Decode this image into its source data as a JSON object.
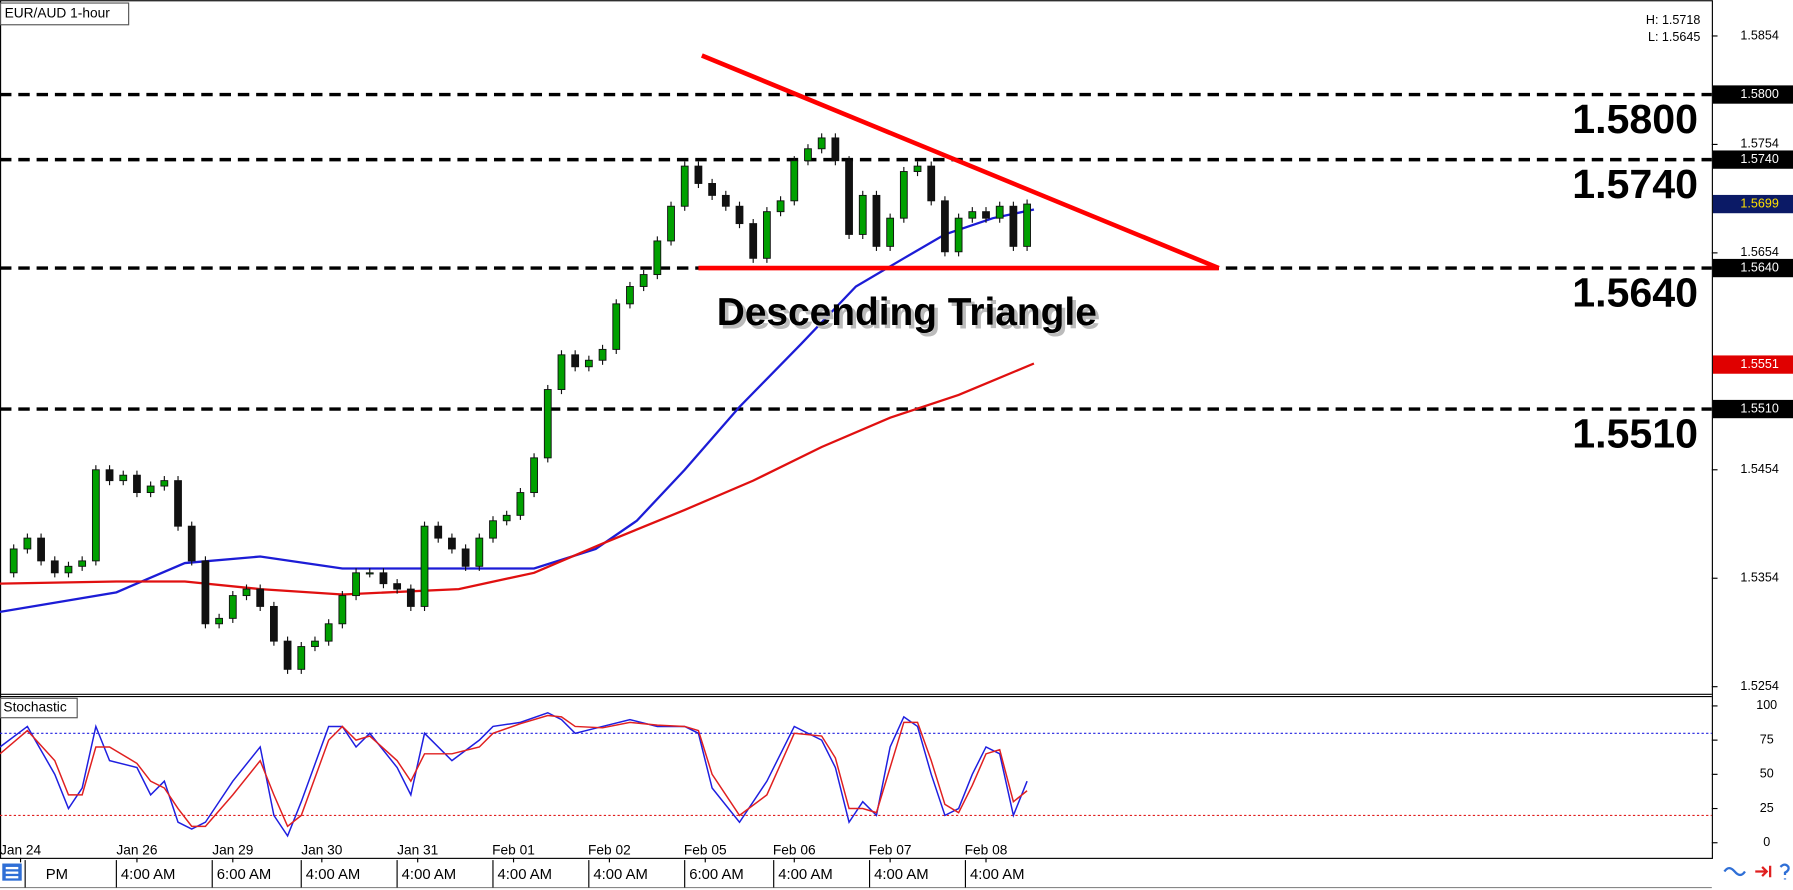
{
  "title": "EUR/AUD 1-hour",
  "high_low": [
    "H: 1.5718",
    "L: 1.5645"
  ],
  "chart_data": [
    {
      "type": "candlestick",
      "x": [
        0,
        2,
        4,
        6,
        8,
        10,
        12,
        14,
        16,
        18,
        20,
        22,
        24,
        26,
        28,
        30,
        32,
        34,
        36,
        38,
        40,
        42,
        44,
        46,
        48,
        50,
        52,
        54,
        56,
        58,
        60,
        62,
        64,
        66,
        68,
        70,
        72,
        74,
        76,
        78,
        80,
        82,
        84,
        86,
        88,
        90,
        92,
        94,
        96,
        98,
        100,
        102,
        104,
        106,
        108,
        110,
        112,
        114,
        116,
        118,
        120,
        122,
        124,
        126,
        128,
        130,
        132,
        134,
        136,
        138,
        140,
        142,
        144,
        146,
        148,
        150
      ],
      "close": [
        1.5359,
        1.5381,
        1.5391,
        1.537,
        1.5359,
        1.5365,
        1.537,
        1.5454,
        1.5444,
        1.5449,
        1.5433,
        1.5439,
        1.5444,
        1.5402,
        1.537,
        1.5312,
        1.5317,
        1.5338,
        1.5344,
        1.5328,
        1.5296,
        1.527,
        1.5291,
        1.5296,
        1.5312,
        1.5338,
        1.5359,
        1.5359,
        1.5349,
        1.5344,
        1.5328,
        1.5402,
        1.5391,
        1.5381,
        1.5365,
        1.5391,
        1.5407,
        1.5412,
        1.5433,
        1.5465,
        1.5528,
        1.556,
        1.5549,
        1.5555,
        1.5565,
        1.5607,
        1.5623,
        1.5634,
        1.5665,
        1.5697,
        1.5734,
        1.5718,
        1.5707,
        1.5697,
        1.5681,
        1.5649,
        1.5692,
        1.5702,
        1.5739,
        1.575,
        1.576,
        1.5739,
        1.5671,
        1.5707,
        1.566,
        1.5686,
        1.5729,
        1.5734,
        1.5702,
        1.5655,
        1.5686,
        1.5692,
        1.5686,
        1.5697,
        1.566,
        1.5699
      ],
      "up_color": "#00a000",
      "down_color": "#111111",
      "overlays": [
        {
          "color": "#1c1cd6",
          "x": [
            0,
            17,
            27,
            38,
            50,
            67,
            78,
            87,
            93,
            100,
            108,
            117,
            125,
            132,
            138,
            145,
            151
          ],
          "values": [
            1.5323,
            1.5341,
            1.5368,
            1.5374,
            1.5363,
            1.5363,
            1.5363,
            1.5381,
            1.5407,
            1.5454,
            1.5512,
            1.557,
            1.5623,
            1.5649,
            1.5671,
            1.5686,
            1.5694
          ]
        },
        {
          "color": "#e01010",
          "x": [
            0,
            17,
            27,
            38,
            50,
            67,
            78,
            88,
            100,
            110,
            120,
            130,
            140,
            151
          ],
          "values": [
            1.5349,
            1.5351,
            1.5351,
            1.5344,
            1.5339,
            1.5344,
            1.5359,
            1.5386,
            1.5417,
            1.5444,
            1.5475,
            1.5502,
            1.5523,
            1.5552
          ]
        }
      ],
      "xlim": [
        0,
        250
      ],
      "ylim": [
        1.5247,
        1.5887
      ],
      "yticks": [
        1.5254,
        1.5354,
        1.5454,
        1.5654,
        1.5754,
        1.5854
      ],
      "xticks": [
        {
          "value": 3,
          "label": "Jan 24"
        },
        {
          "value": 20,
          "label": "Jan 26"
        },
        {
          "value": 34,
          "label": "Jan 29"
        },
        {
          "value": 47,
          "label": "Jan 30"
        },
        {
          "value": 61,
          "label": "Jan 31"
        },
        {
          "value": 75,
          "label": "Feb 01"
        },
        {
          "value": 89,
          "label": "Feb 02"
        },
        {
          "value": 103,
          "label": "Feb 05"
        },
        {
          "value": 116,
          "label": "Feb 06"
        },
        {
          "value": 130,
          "label": "Feb 07"
        },
        {
          "value": 144,
          "label": "Feb 08"
        }
      ],
      "x_sublabels": [
        "PM",
        "4:00 AM",
        "6:00 AM",
        "4:00 AM",
        "4:00 AM",
        "4:00 AM",
        "4:00 AM",
        "6:00 AM",
        "4:00 AM",
        "4:00 AM",
        "4:00 AM"
      ],
      "levels": [
        {
          "value": 1.58,
          "label": "1.5800"
        },
        {
          "value": 1.574,
          "label": "1.5740"
        },
        {
          "value": 1.564,
          "label": "1.5640"
        },
        {
          "value": 1.551,
          "label": "1.5510"
        }
      ],
      "price_markers": [
        {
          "value": 1.5699,
          "label": "1.5699",
          "color": "#0b1a66",
          "text_color": "#ffe000"
        },
        {
          "value": 1.5551,
          "label": "1.5551",
          "color": "#e00000",
          "text_color": "#ffffff"
        }
      ],
      "trendlines": [
        {
          "x": [
            102.5,
            178
          ],
          "y": [
            1.5836,
            1.564
          ]
        },
        {
          "x": [
            102,
            178
          ],
          "y": [
            1.564,
            1.564
          ]
        }
      ],
      "trend_color": "#ff0000",
      "annotation": "Descending Triangle"
    },
    {
      "type": "line",
      "title": "Stochastic",
      "x": [
        0,
        4,
        8,
        10,
        12,
        14,
        16,
        20,
        22,
        24,
        26,
        28,
        30,
        34,
        38,
        40,
        42,
        44,
        48,
        50,
        52,
        54,
        58,
        60,
        62,
        66,
        70,
        72,
        76,
        80,
        82,
        84,
        88,
        92,
        96,
        100,
        102,
        104,
        108,
        112,
        116,
        120,
        122,
        124,
        126,
        128,
        130,
        132,
        134,
        136,
        138,
        140,
        142,
        144,
        146,
        148,
        150
      ],
      "series": [
        {
          "color": "#1f1fe0",
          "values": [
            70,
            85,
            50,
            25,
            40,
            85,
            60,
            55,
            35,
            45,
            15,
            10,
            15,
            45,
            70,
            20,
            5,
            30,
            85,
            85,
            70,
            80,
            55,
            35,
            80,
            60,
            75,
            85,
            88,
            95,
            90,
            80,
            85,
            90,
            85,
            85,
            80,
            40,
            15,
            45,
            85,
            75,
            55,
            15,
            30,
            20,
            70,
            92,
            85,
            50,
            20,
            25,
            50,
            70,
            65,
            20,
            45
          ]
        },
        {
          "color": "#e02020",
          "values": [
            65,
            82,
            60,
            35,
            35,
            70,
            70,
            58,
            45,
            40,
            25,
            12,
            12,
            35,
            60,
            35,
            12,
            20,
            75,
            85,
            75,
            78,
            60,
            45,
            65,
            65,
            70,
            80,
            87,
            93,
            92,
            85,
            84,
            88,
            86,
            85,
            82,
            50,
            20,
            35,
            80,
            78,
            62,
            25,
            25,
            22,
            55,
            88,
            88,
            60,
            28,
            22,
            42,
            65,
            68,
            30,
            38
          ]
        }
      ],
      "xlim": [
        0,
        250
      ],
      "ylim": [
        -11,
        106
      ],
      "yticks": [
        0,
        25,
        50,
        75,
        100
      ],
      "levels": [
        {
          "value": 80,
          "color": "#2020e0"
        },
        {
          "value": 20,
          "color": "#e02020"
        }
      ]
    }
  ]
}
